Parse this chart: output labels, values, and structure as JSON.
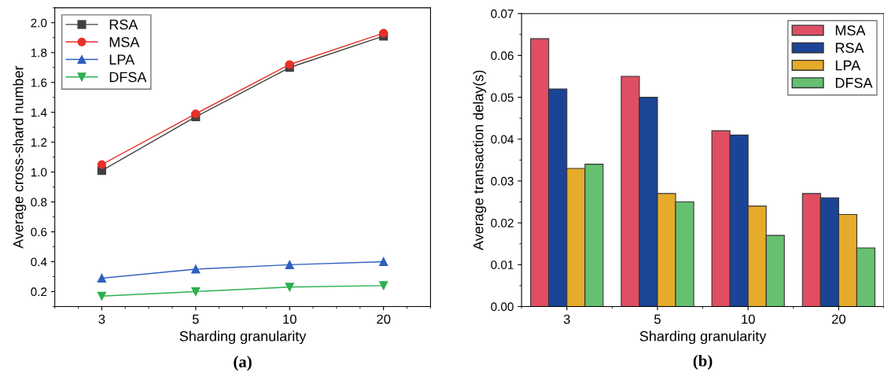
{
  "chart_data": [
    {
      "type": "line",
      "categories": [
        "3",
        "5",
        "10",
        "20"
      ],
      "xlabel": "Sharding granularity",
      "ylabel": "Average cross-shard number",
      "ylim": [
        0.1,
        2.1
      ],
      "yticks": [
        0.2,
        0.4,
        0.6,
        0.8,
        {
          "value": 1,
          "label": "1.0"
        },
        1.2,
        1.4,
        1.6,
        1.8,
        {
          "value": 2,
          "label": "2.0"
        }
      ],
      "legend": "top left",
      "grid": false,
      "annotations": [
        "(a)"
      ],
      "series": [
        {
          "name": "RSA",
          "color": "#404040",
          "marker": "square",
          "values": [
            1.01,
            1.37,
            1.7,
            1.91
          ]
        },
        {
          "name": "MSA",
          "color": "#e8302a",
          "marker": "circle",
          "values": [
            1.05,
            1.39,
            1.72,
            1.93
          ]
        },
        {
          "name": "LPA",
          "color": "#2e5fbf",
          "marker": "triangle",
          "values": [
            0.29,
            0.35,
            0.38,
            0.4
          ]
        },
        {
          "name": "DFSA",
          "color": "#2db04f",
          "marker": "triangle_down",
          "values": [
            0.17,
            0.2,
            0.23,
            0.24
          ]
        }
      ]
    },
    {
      "type": "bar",
      "categories": [
        "3",
        "5",
        "10",
        "20"
      ],
      "xlabel": "Sharding granularity",
      "ylabel": "Average transaction delay(s)",
      "ylim": [
        0,
        0.07
      ],
      "yticks": [
        {
          "value": 0,
          "label": "0.00"
        },
        0.01,
        0.02,
        0.03,
        0.04,
        0.05,
        0.06,
        0.07
      ],
      "legend": "top right",
      "grid": false,
      "annotations": [
        "(b)"
      ],
      "series": [
        {
          "name": "MSA",
          "color": "#df4e62",
          "values": [
            0.064,
            0.055,
            0.042,
            0.027
          ]
        },
        {
          "name": "RSA",
          "color": "#1c4496",
          "values": [
            0.052,
            0.05,
            0.041,
            0.026
          ]
        },
        {
          "name": "LPA",
          "color": "#e6ab2a",
          "values": [
            0.033,
            0.027,
            0.024,
            0.022
          ]
        },
        {
          "name": "DFSA",
          "color": "#66c070",
          "values": [
            0.034,
            0.025,
            0.017,
            0.014
          ]
        }
      ]
    }
  ]
}
